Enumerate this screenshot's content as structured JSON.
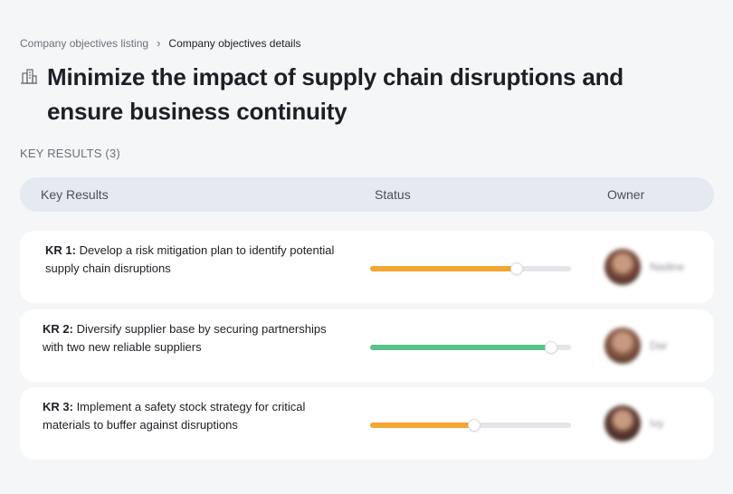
{
  "breadcrumb": {
    "parent": "Company objectives listing",
    "separator": "›",
    "current": "Company objectives details"
  },
  "title": "Minimize the impact of supply chain disruptions and ensure business continuity",
  "title_icon": "building-icon",
  "section_label": "KEY RESULTS (3)",
  "table_header": {
    "key_results": "Key Results",
    "status": "Status",
    "owner": "Owner"
  },
  "key_results": [
    {
      "id": "KR 1:",
      "text": " Develop a risk mitigation plan to identify potential supply chain disruptions",
      "progress": 0.73,
      "color": "#f5a531",
      "owner": "Nadine",
      "avatar_color": "#7a4a3a"
    },
    {
      "id": "KR 2:",
      "text": " Diversify supplier base by securing partnerships with two new reliable suppliers",
      "progress": 0.9,
      "color": "#59c189",
      "owner": "Dar",
      "avatar_color": "#8a5a45"
    },
    {
      "id": "KR 3:",
      "text": " Implement a safety stock strategy for critical materials to buffer against disruptions",
      "progress": 0.52,
      "color": "#f5a531",
      "owner": "Ivy",
      "avatar_color": "#5e3b30"
    }
  ]
}
